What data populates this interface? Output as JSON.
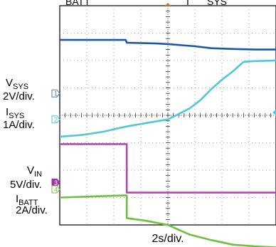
{
  "chart_data": {
    "type": "line",
    "title_partial": "BATT ... I ... SYS",
    "xlabel": "2s/div.",
    "xlim": [
      0,
      20
    ],
    "y_divisions": 8,
    "series": [
      {
        "name": "VSYS",
        "scale": "2V/div.",
        "color": "#1f57a8",
        "marker": "1",
        "marker_color": "#4a7cc4",
        "x": [
          0,
          6.1,
          6.2,
          9,
          10,
          12.5,
          14,
          16,
          18,
          20
        ],
        "y": [
          6.75,
          6.75,
          6.65,
          6.62,
          6.6,
          6.52,
          6.45,
          6.42,
          6.4,
          6.4
        ]
      },
      {
        "name": "ISYS",
        "scale": "1A/div.",
        "color": "#4ec8d6",
        "marker": "2",
        "marker_color": "#4ec8d6",
        "x": [
          0,
          2,
          4,
          6,
          8,
          10,
          12,
          13,
          14,
          15,
          16,
          17,
          18,
          20
        ],
        "y": [
          3.22,
          3.28,
          3.4,
          3.58,
          3.72,
          3.85,
          4.25,
          4.55,
          4.95,
          5.3,
          5.6,
          5.95,
          5.98,
          6.0
        ]
      },
      {
        "name": "VIN",
        "scale": "5V/div.",
        "color": "#b347b3",
        "marker": "3",
        "marker_color": "#a030a0",
        "x": [
          0,
          6.2,
          6.2,
          20
        ],
        "y": [
          2.95,
          2.95,
          1.18,
          1.18
        ]
      },
      {
        "name": "IBATT",
        "scale": "2A/div.",
        "color": "#6fc040",
        "marker": "4",
        "marker_color": "#6fc040",
        "x": [
          0,
          6.2,
          6.2,
          8,
          10,
          12,
          14,
          16,
          18,
          20
        ],
        "y": [
          1.0,
          1.08,
          0.25,
          0.15,
          0.0,
          -0.35,
          -0.55,
          -0.72,
          -0.78,
          -0.82
        ]
      }
    ],
    "labels": {
      "vsys_name": "V",
      "vsys_sub": "SYS",
      "vsys_scale": "2V/div.",
      "isys_name": "I",
      "isys_sub": "SYS",
      "isys_scale": "1A/div.",
      "vin_name": "V",
      "vin_sub": "IN",
      "vin_scale": "5V/div.",
      "ibatt_name": "I",
      "ibatt_sub": "BATT",
      "ibatt_scale": "2A/div.",
      "top_text": "BATT",
      "top_text2": "I",
      "top_text3": "SYS"
    }
  }
}
